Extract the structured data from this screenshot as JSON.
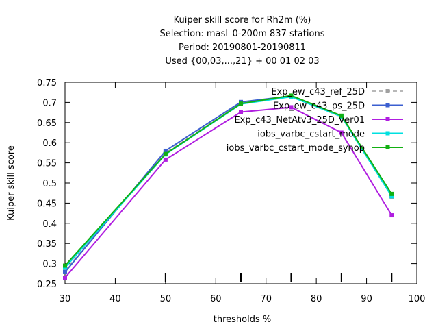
{
  "chart_data": {
    "type": "line",
    "title_lines": [
      "Kuiper skill score  for Rh2m (%)",
      "Selection: masl_0-200m    837 stations",
      "Period: 20190801-20190811",
      "Used {00,03,...,21} + 00 01 02 03"
    ],
    "xlabel": "thresholds %",
    "ylabel": "Kuiper skill score",
    "xlim": [
      30,
      100
    ],
    "ylim": [
      0.25,
      0.75
    ],
    "xticks": [
      30,
      40,
      50,
      60,
      70,
      80,
      90,
      100
    ],
    "yticks": [
      0.25,
      0.3,
      0.35,
      0.4,
      0.45,
      0.5,
      0.55,
      0.6,
      0.65,
      0.7,
      0.75
    ],
    "marker_x": [
      50,
      65,
      75,
      85,
      95
    ],
    "grid": false,
    "legend_position": "top-right",
    "x": [
      30,
      50,
      65,
      75,
      85,
      95
    ],
    "series": [
      {
        "name": "Exp_ew_c43_ref_25D",
        "color": "#a0a0a0",
        "dashed": true,
        "values": [
          0.283,
          0.575,
          0.698,
          0.714,
          0.664,
          0.466
        ]
      },
      {
        "name": "Exp_ew_c43_ps_25D",
        "color": "#3b5fd0",
        "dashed": false,
        "values": [
          0.279,
          0.58,
          0.701,
          0.716,
          0.666,
          0.468
        ]
      },
      {
        "name": "Exp_c43_NetAtv3_25D_ver01",
        "color": "#b01ee0",
        "dashed": false,
        "values": [
          0.265,
          0.558,
          0.676,
          0.688,
          0.625,
          0.42
        ]
      },
      {
        "name": "iobs_varbc_cstart_mode",
        "color": "#00e0e0",
        "dashed": false,
        "values": [
          0.29,
          0.571,
          0.696,
          0.714,
          0.665,
          0.467
        ]
      },
      {
        "name": "iobs_varbc_cstart_mode_synop",
        "color": "#12b012",
        "dashed": false,
        "values": [
          0.295,
          0.572,
          0.697,
          0.717,
          0.667,
          0.473
        ]
      }
    ]
  }
}
